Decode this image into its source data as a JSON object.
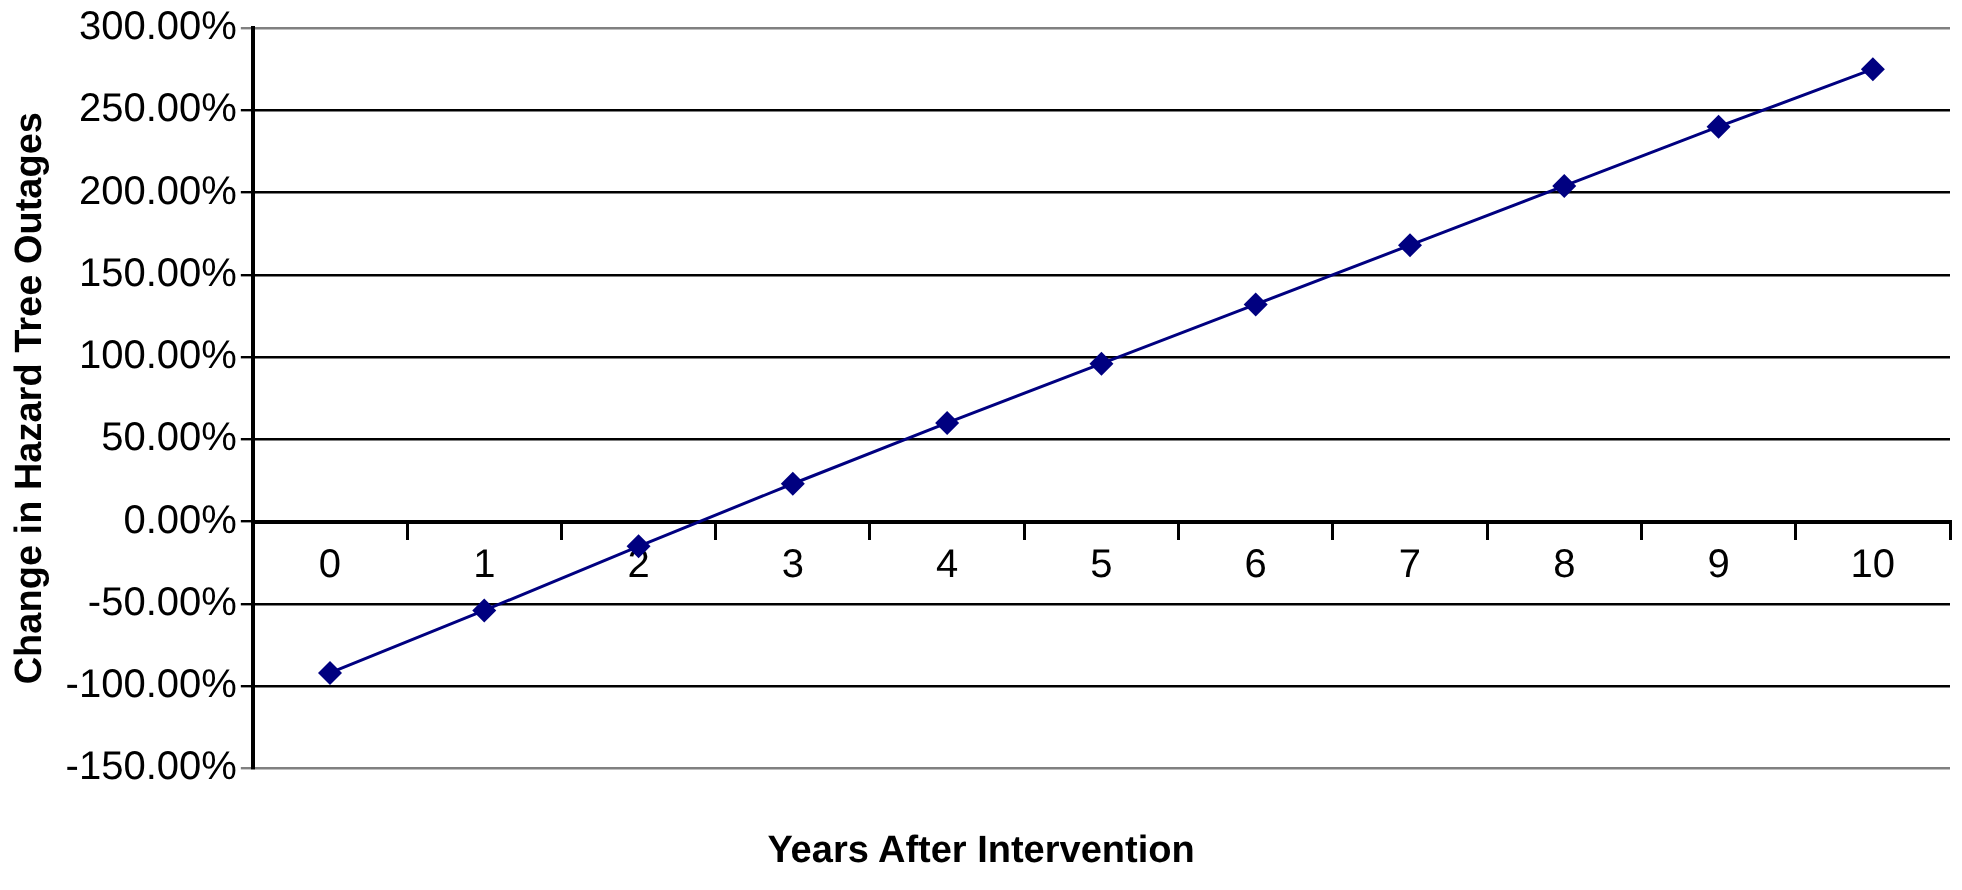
{
  "chart_data": {
    "type": "line",
    "xlabel": "Years After Intervention",
    "ylabel": "Change in Hazard Tree Outages",
    "categories": [
      "0",
      "1",
      "2",
      "3",
      "4",
      "5",
      "6",
      "7",
      "8",
      "9",
      "10"
    ],
    "series": [
      {
        "color": "#000080",
        "values": [
          -92,
          -54,
          -15,
          23,
          60,
          96,
          132,
          168,
          204,
          240,
          275
        ]
      }
    ],
    "ylim": [
      -150,
      300
    ],
    "yticks": [
      {
        "value": -150,
        "label": "-150.00%"
      },
      {
        "value": -100,
        "label": "-100.00%"
      },
      {
        "value": -50,
        "label": "-50.00%"
      },
      {
        "value": 0,
        "label": "0.00%"
      },
      {
        "value": 50,
        "label": "50.00%"
      },
      {
        "value": 100,
        "label": "100.00%"
      },
      {
        "value": 150,
        "label": "150.00%"
      },
      {
        "value": 200,
        "label": "200.00%"
      },
      {
        "value": 250,
        "label": "250.00%"
      },
      {
        "value": 300,
        "label": "300.00%"
      }
    ],
    "grid": "y",
    "legend": false,
    "marker": "diamond",
    "line_style": "solid"
  }
}
